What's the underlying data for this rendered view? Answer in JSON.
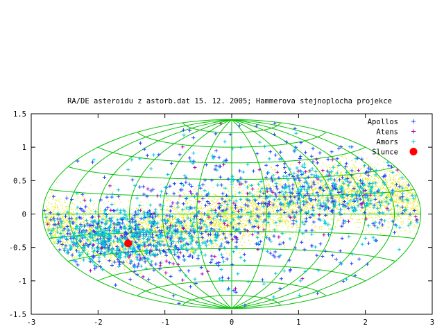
{
  "chart_data": {
    "type": "scatter",
    "title": "RA/DE asteroidu z astorb.dat 15. 12. 2005; Hammerova stejnoplocha projekce",
    "xlabel": "",
    "ylabel": "",
    "xlim": [
      -3,
      3
    ],
    "ylim": [
      -1.5,
      1.5
    ],
    "x_ticks": [
      "-3",
      "-2",
      "-1",
      "0",
      "1",
      "2",
      "3"
    ],
    "y_ticks": [
      "-1.5",
      "-1",
      "-0.5",
      "0",
      "0.5",
      "1",
      "1.5"
    ],
    "grid": true,
    "grid_color": "#00c000",
    "projection": "Hammer equal-area, meridians every 30 deg, parallels every 15 deg",
    "legend_position": "top-right",
    "series": [
      {
        "name": "Apollos",
        "marker": "+",
        "color": "#2040ff",
        "clusters": [
          {
            "x": -1.8,
            "y": -0.35,
            "sx": 0.9,
            "sy": 0.25,
            "n": 380
          },
          {
            "x": 1.4,
            "y": 0.3,
            "sx": 0.9,
            "sy": 0.3,
            "n": 240
          },
          {
            "x": 0.0,
            "y": 0.0,
            "sx": 1.6,
            "sy": 0.7,
            "n": 300
          }
        ]
      },
      {
        "name": "Atens",
        "marker": "+",
        "color": "#b000b0",
        "clusters": [
          {
            "x": -1.6,
            "y": -0.35,
            "sx": 0.9,
            "sy": 0.3,
            "n": 55
          },
          {
            "x": 1.2,
            "y": 0.3,
            "sx": 1.0,
            "sy": 0.35,
            "n": 40
          },
          {
            "x": 0.0,
            "y": 0.0,
            "sx": 1.6,
            "sy": 0.7,
            "n": 35
          }
        ]
      },
      {
        "name": "Amors",
        "marker": "+",
        "color": "#00c8d8",
        "clusters": [
          {
            "x": -1.7,
            "y": -0.35,
            "sx": 0.8,
            "sy": 0.2,
            "n": 520
          },
          {
            "x": 1.5,
            "y": 0.3,
            "sx": 0.85,
            "sy": 0.25,
            "n": 260
          },
          {
            "x": 0.0,
            "y": 0.0,
            "sx": 1.6,
            "sy": 0.65,
            "n": 200
          }
        ]
      },
      {
        "name": "Slunce",
        "marker": "filled-circle",
        "color": "#ff0000",
        "points": [
          {
            "x": -1.55,
            "y": -0.44
          }
        ]
      }
    ],
    "background_points": {
      "marker": "dot",
      "color": "#e8e800",
      "description": "main-belt asteroids concentrated along the ecliptic band",
      "band": {
        "x_start": -2.8,
        "x_end": 2.8,
        "y_at_x_start": -0.15,
        "y_at_minus_1_6": -0.4,
        "y_at_0": -0.05,
        "y_at_1_6": 0.35,
        "y_at_x_end": 0.2,
        "spread": 0.22
      },
      "n": 7000
    }
  }
}
